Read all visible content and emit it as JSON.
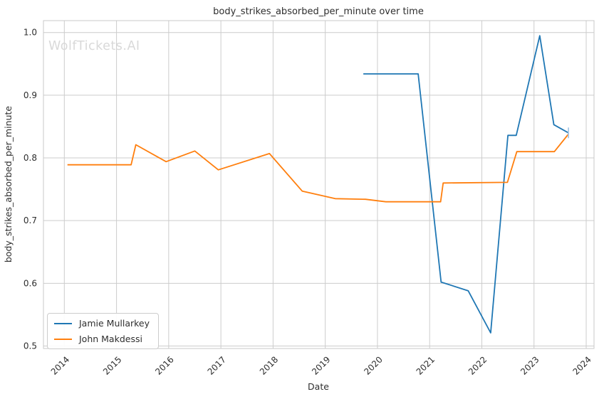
{
  "chart_data": {
    "type": "line",
    "title": "body_strikes_absorbed_per_minute over time",
    "xlabel": "Date",
    "ylabel": "body_strikes_absorbed_per_minute",
    "watermark": "WolfTickets.AI",
    "grid": true,
    "legend_position": "lower left",
    "xlim": [
      2013.6,
      2024.15
    ],
    "ylim": [
      0.496,
      1.019
    ],
    "x_ticks": [
      2014,
      2015,
      2016,
      2017,
      2018,
      2019,
      2020,
      2021,
      2022,
      2023,
      2024
    ],
    "x_tick_labels": [
      "2014",
      "2015",
      "2016",
      "2017",
      "2018",
      "2019",
      "2020",
      "2021",
      "2022",
      "2023",
      "2024"
    ],
    "y_ticks": [
      0.5,
      0.6,
      0.7,
      0.8,
      0.9,
      1.0
    ],
    "y_tick_labels": [
      "0.5",
      "0.6",
      "0.7",
      "0.8",
      "0.9",
      "1.0"
    ],
    "series": [
      {
        "name": "Jamie Mullarkey",
        "color": "#1f77b4",
        "x": [
          2019.73,
          2020.78,
          2021.22,
          2021.74,
          2022.17,
          2022.5,
          2022.66,
          2023.11,
          2023.38,
          2023.66
        ],
        "y": [
          0.934,
          0.934,
          0.602,
          0.588,
          0.521,
          0.836,
          0.836,
          0.995,
          0.853,
          0.84
        ]
      },
      {
        "name": "John Makdessi",
        "color": "#ff7f0e",
        "x": [
          2014.06,
          2015.28,
          2015.37,
          2015.95,
          2016.5,
          2016.95,
          2017.93,
          2018.56,
          2019.19,
          2019.77,
          2020.16,
          2021.21,
          2021.26,
          2022.49,
          2022.67,
          2023.39,
          2023.66
        ],
        "y": [
          0.789,
          0.789,
          0.821,
          0.794,
          0.811,
          0.781,
          0.807,
          0.747,
          0.735,
          0.734,
          0.73,
          0.73,
          0.76,
          0.761,
          0.81,
          0.81,
          0.838
        ]
      }
    ],
    "end_marker": {
      "series": "Jamie Mullarkey",
      "x": 2023.66,
      "y": 0.84,
      "shape": "vertical-tick",
      "color": "#a8c8e8"
    }
  },
  "colors": {
    "background": "#ffffff",
    "grid": "#cccccc",
    "spine": "#c9c9c9",
    "text": "#2e2e2e",
    "watermark": "#d9d9d9",
    "series_blue": "#1f77b4",
    "series_orange": "#ff7f0e",
    "end_marker": "#a8c8e8"
  }
}
